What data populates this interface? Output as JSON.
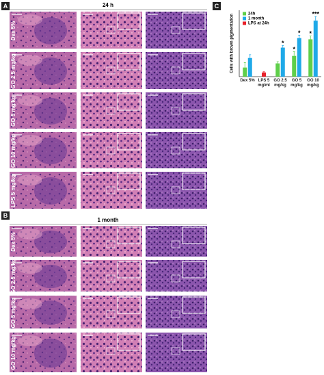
{
  "panels": [
    {
      "label": "A",
      "title": "24 h",
      "rows": [
        "Dex 5%",
        "GO 2.5 mg/kg",
        "GO 5 mg/kg",
        "GO 10 mg/kg",
        "LPS 5 mg/kg"
      ]
    },
    {
      "label": "B",
      "title": "1 month",
      "rows": [
        "Dex 5%",
        "GO 2.5 mg/kg",
        "GO 5 mg/kg",
        "GO 10 mg/kg"
      ]
    }
  ],
  "chart_label": "C",
  "chart_data": {
    "type": "bar",
    "y_label": "Cells with brown pigmentation",
    "categories": [
      "Dex 5%",
      "LPS 5 mg/ml",
      "GO 2.5 mg/kg",
      "GO 5 mg/kg",
      "GO 10 mg/kg"
    ],
    "series": [
      {
        "name": "24h",
        "color": "#5fcf4a",
        "values": [
          22,
          null,
          32,
          50,
          90
        ],
        "errors": [
          12,
          null,
          4,
          10,
          8
        ]
      },
      {
        "name": "1 month",
        "color": "#1fa9e8",
        "values": [
          45,
          null,
          70,
          93,
          135
        ],
        "errors": [
          8,
          null,
          5,
          7,
          10
        ]
      },
      {
        "name": "LPS at 24h",
        "color": "#e8212a",
        "values": [
          null,
          10,
          null,
          null,
          null
        ],
        "errors": [
          null,
          2,
          null,
          null,
          null
        ]
      }
    ],
    "ylim": [
      0,
      160
    ],
    "annotations": [
      {
        "text": "*",
        "category": "GO 2.5 mg/kg",
        "series": "1 month"
      },
      {
        "text": "*",
        "category": "GO 5 mg/kg",
        "series": "24h"
      },
      {
        "text": "*",
        "category": "GO 5 mg/kg",
        "series": "1 month"
      },
      {
        "text": "*",
        "category": "GO 10 mg/kg",
        "series": "24h"
      },
      {
        "text": "***",
        "category": "GO 10 mg/kg",
        "series": "1 month"
      }
    ]
  }
}
